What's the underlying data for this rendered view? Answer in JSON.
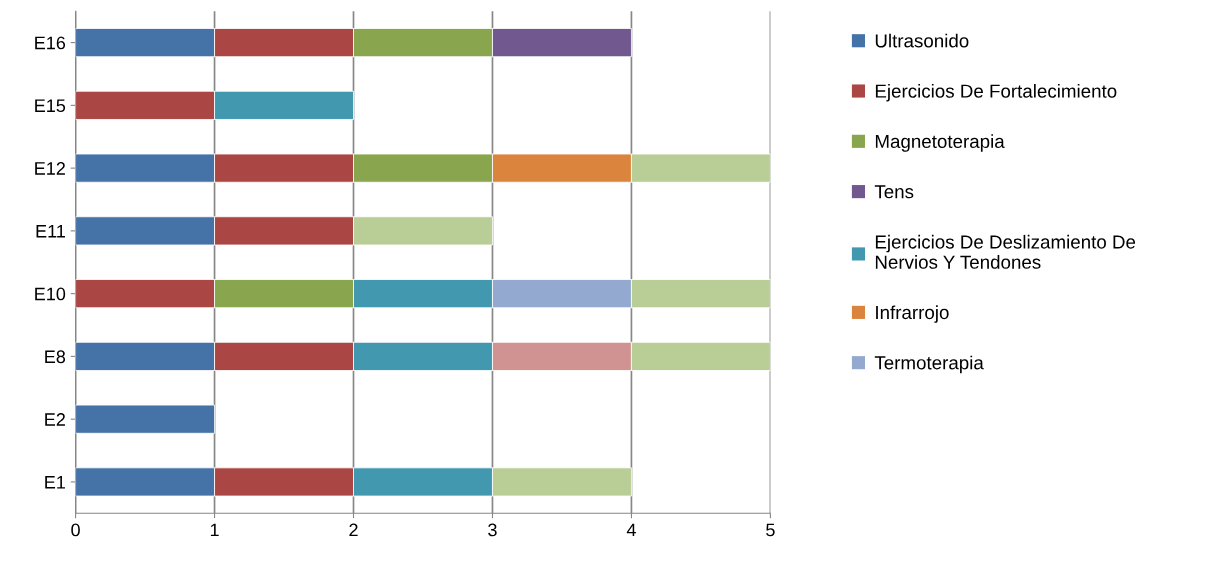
{
  "chart_data": {
    "type": "bar",
    "orientation": "horizontal",
    "stacked": true,
    "categories": [
      "E16",
      "E15",
      "E12",
      "E11",
      "E10",
      "E8",
      "E2",
      "E1"
    ],
    "series": [
      {
        "name": "Ultrasonido",
        "color": "#4572a7",
        "values": [
          1,
          null,
          1,
          1,
          null,
          1,
          1,
          1
        ]
      },
      {
        "name": "Ejercicios De Fortalecimiento",
        "color": "#aa4643",
        "values": [
          1,
          1,
          1,
          1,
          1,
          1,
          null,
          1
        ]
      },
      {
        "name": "Magnetoterapia",
        "color": "#89a54e",
        "values": [
          1,
          null,
          1,
          null,
          1,
          null,
          null,
          null
        ]
      },
      {
        "name": "Tens",
        "color": "#71588f",
        "values": [
          1,
          null,
          null,
          null,
          null,
          null,
          null,
          null
        ]
      },
      {
        "name": "Ejercicios De Deslizamiento De\nNervios Y Tendones",
        "color": "#4198af",
        "values": [
          null,
          1,
          null,
          null,
          1,
          1,
          null,
          1
        ]
      },
      {
        "name": "Infrarrojo",
        "color": "#db843d",
        "values": [
          null,
          null,
          1,
          null,
          null,
          null,
          null,
          null
        ]
      },
      {
        "name": "Termoterapia",
        "color": "#93a9cf",
        "values": [
          null,
          null,
          null,
          null,
          1,
          null,
          null,
          null
        ]
      },
      {
        "color": "#d19392",
        "values": [
          null,
          null,
          null,
          null,
          null,
          1,
          null,
          null
        ]
      },
      {
        "color": "#b9cd96",
        "values": [
          null,
          null,
          1,
          1,
          1,
          1,
          null,
          1
        ]
      }
    ],
    "xlim": [
      0,
      5
    ],
    "xticks": [
      0,
      1,
      2,
      3,
      4,
      5
    ],
    "grid": "x",
    "legend": "right"
  }
}
